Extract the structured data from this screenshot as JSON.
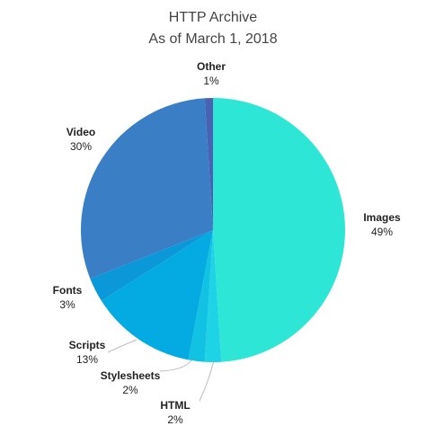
{
  "chart_data": {
    "type": "pie",
    "title": "HTTP Archive",
    "subtitle": "As of March 1, 2018",
    "categories": [
      "Images",
      "HTML",
      "Stylesheets",
      "Scripts",
      "Fonts",
      "Video",
      "Other"
    ],
    "values": [
      49,
      2,
      2,
      13,
      3,
      30,
      1
    ],
    "value_labels": [
      "49%",
      "2%",
      "2%",
      "13%",
      "3%",
      "30%",
      "1%"
    ],
    "colors": [
      "#2ee6d6",
      "#1fd3e6",
      "#12c2e3",
      "#04aae2",
      "#0a98d8",
      "#3a7fc6",
      "#4a62b4"
    ]
  }
}
